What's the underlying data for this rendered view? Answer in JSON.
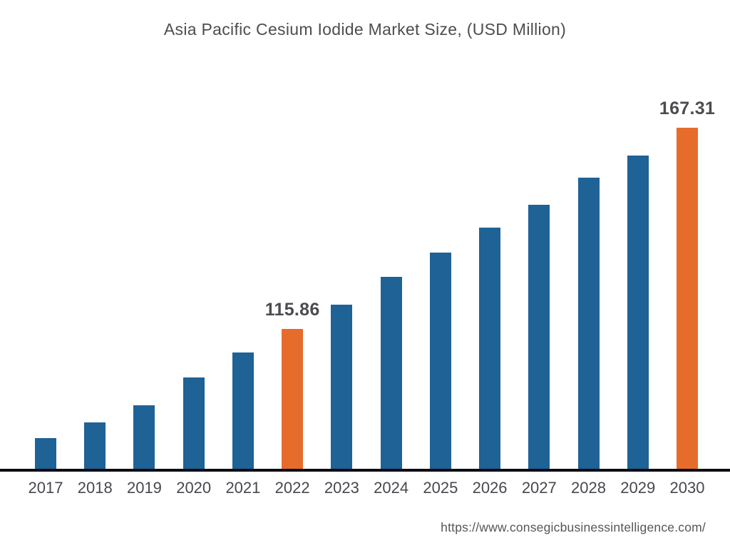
{
  "header": {
    "title": "Asia Pacific Cesium Iodide Market Size, (USD Million)"
  },
  "footer": {
    "source_url": "https://www.consegicbusinessintelligence.com/"
  },
  "chart_data": {
    "type": "bar",
    "title": "Asia Pacific Cesium Iodide Market Size, (USD Million)",
    "categories": [
      "2017",
      "2018",
      "2019",
      "2020",
      "2021",
      "2022",
      "2023",
      "2024",
      "2025",
      "2026",
      "2027",
      "2028",
      "2029",
      "2030"
    ],
    "values": [
      87.8,
      91.8,
      96.3,
      103.3,
      109.7,
      115.86,
      122.1,
      129.2,
      135.4,
      141.8,
      147.6,
      154.5,
      160.2,
      167.31
    ],
    "data_labels": {
      "2022": "115.86",
      "2030": "167.31"
    },
    "highlighted_categories": [
      "2022",
      "2030"
    ],
    "labeled_values_note": "only 2022 and 2030 show data labels; other values estimated from bar heights",
    "xlabel": "",
    "ylabel": "",
    "value_axis": {
      "baseline_value": 80,
      "max_value": 167.31,
      "visible": false
    },
    "grid": false,
    "legend": false,
    "colors": {
      "bar_default": "#1e6296",
      "bar_highlight": "#e66c2b",
      "axis_line": "#0c0c13",
      "title_text": "#4d4d52",
      "tick_text": "#47484d",
      "data_label_text": "#4c4c50",
      "url_text": "#55565a"
    }
  }
}
